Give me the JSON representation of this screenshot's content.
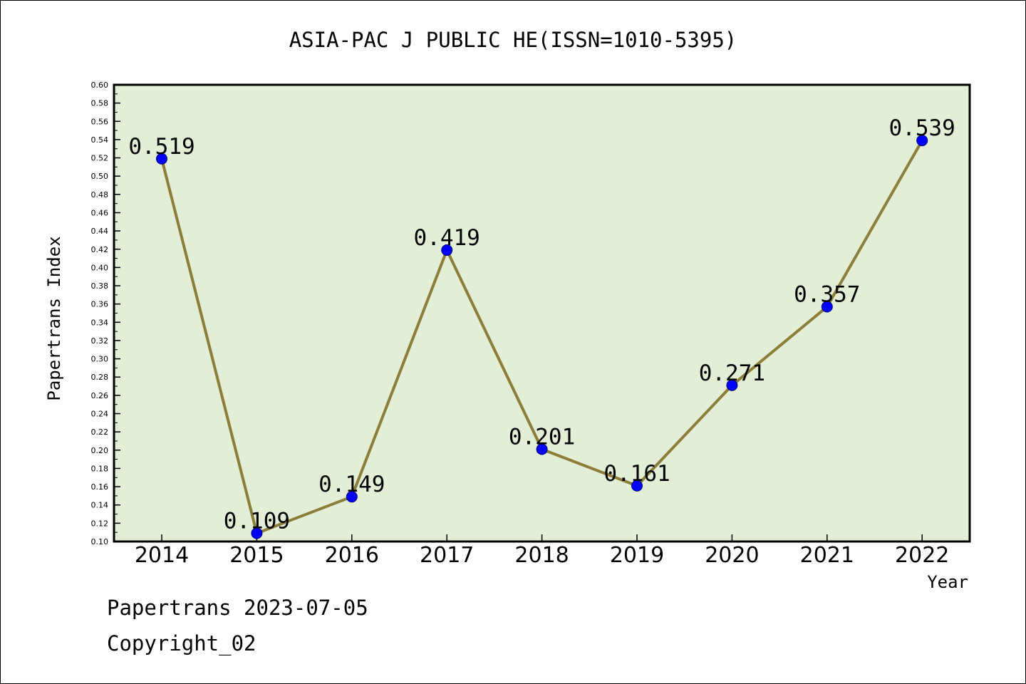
{
  "footer": {
    "line1": "Papertrans 2023-07-05",
    "line2": "Copyright_02"
  },
  "colors": {
    "plot_background": "#e2efd6",
    "line": "#8b7d3a",
    "marker": "#0000ff",
    "marker_edge": "#000080"
  },
  "chart_data": {
    "type": "line",
    "title": "ASIA-PAC J PUBLIC HE(ISSN=1010-5395)",
    "xlabel": "Year",
    "ylabel": "Papertrans Index",
    "ylim": [
      0.1,
      0.6
    ],
    "ytick_step": 0.02,
    "grid": false,
    "x": [
      "2014",
      "2015",
      "2016",
      "2017",
      "2018",
      "2019",
      "2020",
      "2021",
      "2022"
    ],
    "series": [
      {
        "values": [
          0.519,
          0.109,
          0.149,
          0.419,
          0.201,
          0.161,
          0.271,
          0.357,
          0.539
        ],
        "labels": [
          "0.519",
          "0.109",
          "0.149",
          "0.419",
          "0.201",
          "0.161",
          "0.271",
          "0.357",
          "0.539"
        ]
      }
    ]
  }
}
